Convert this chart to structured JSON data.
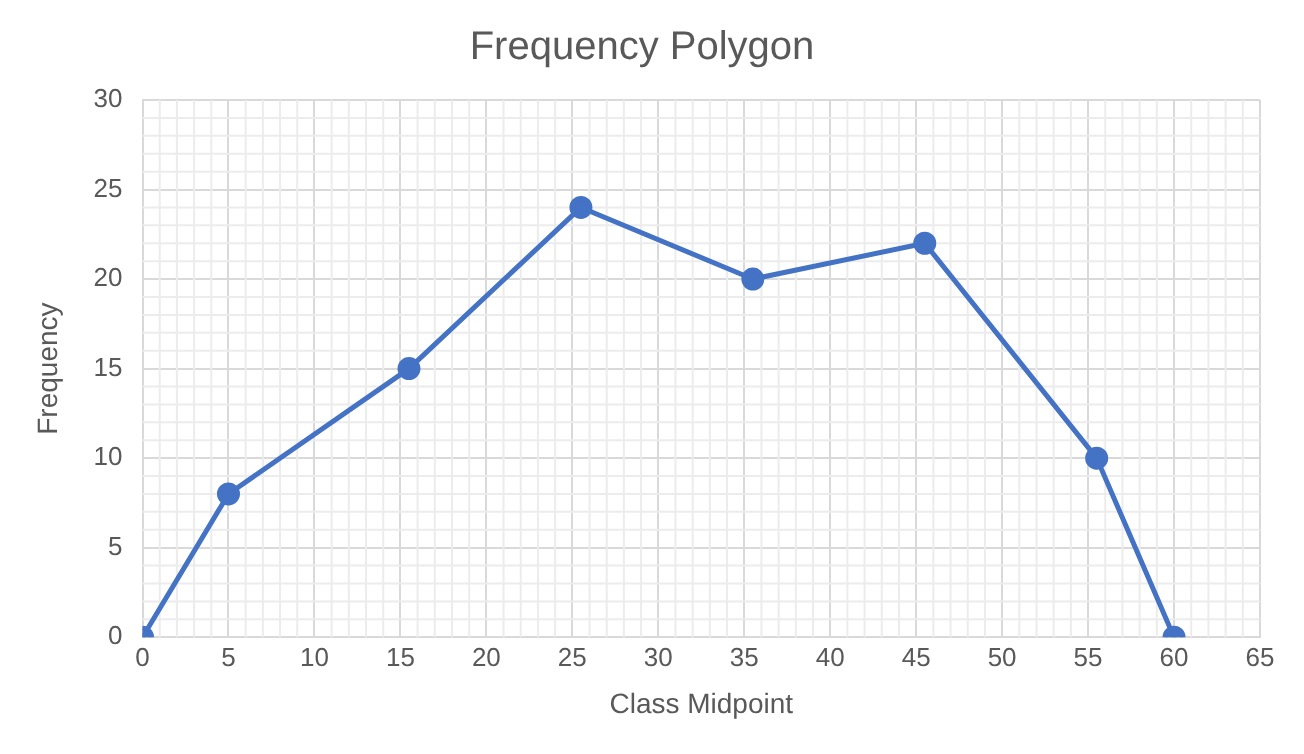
{
  "chart_data": {
    "type": "line",
    "title": "Frequency Polygon",
    "xlabel": "Class Midpoint",
    "ylabel": "Frequency",
    "x": [
      0,
      5,
      15.5,
      25.5,
      35.5,
      45.5,
      55.5,
      60
    ],
    "series": [
      {
        "color": "#4472c4",
        "values": [
          0,
          8,
          15,
          24,
          20,
          22,
          10,
          0
        ]
      }
    ],
    "xlim": [
      0,
      65
    ],
    "xticks": [
      0,
      5,
      10,
      15,
      20,
      25,
      30,
      35,
      40,
      45,
      50,
      55,
      60,
      65
    ],
    "ylim": [
      0,
      30
    ],
    "yticks": [
      0,
      5,
      10,
      15,
      20,
      25,
      30
    ],
    "grid": true,
    "marker": "circle",
    "line_style": "solid",
    "legend": false
  }
}
